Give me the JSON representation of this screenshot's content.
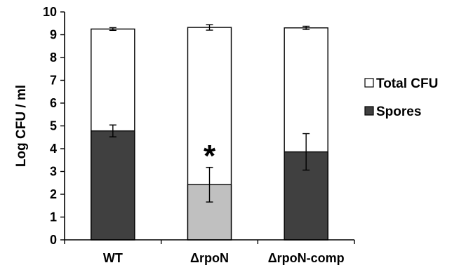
{
  "chart_data": {
    "type": "bar",
    "stacked_overlay": true,
    "ylabel": "Log CFU / ml",
    "xlabel": "",
    "ylim": [
      0,
      10
    ],
    "yticks": [
      0,
      1,
      2,
      3,
      4,
      5,
      6,
      7,
      8,
      9,
      10
    ],
    "categories": [
      "WT",
      "ΔrpoN",
      "ΔrpoN-comp"
    ],
    "series": [
      {
        "name": "Total CFU",
        "color": "#ffffff",
        "values": [
          9.25,
          9.32,
          9.3
        ],
        "errors": [
          0.06,
          0.12,
          0.07
        ]
      },
      {
        "name": "Spores",
        "color": "#404040",
        "point_colors": [
          "#404040",
          "#c0c0c0",
          "#404040"
        ],
        "values": [
          4.78,
          2.42,
          3.86
        ],
        "errors": [
          0.26,
          0.76,
          0.8
        ]
      }
    ],
    "annotations": [
      {
        "text": "*",
        "category": "ΔrpoN",
        "y": 4.1
      }
    ],
    "legend_position": "right"
  }
}
